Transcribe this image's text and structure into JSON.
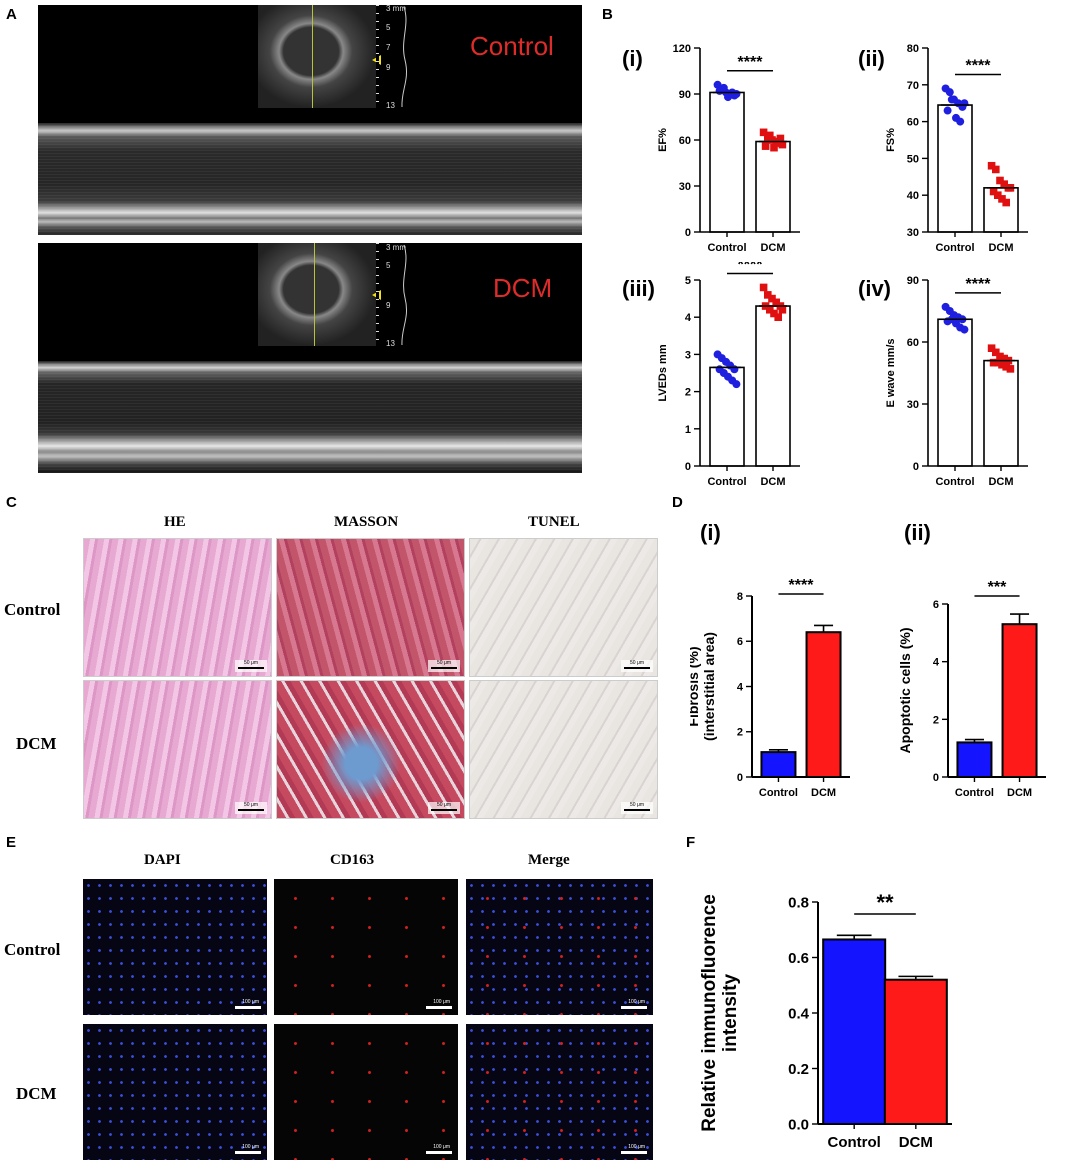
{
  "panels": {
    "A": "A",
    "B": "B",
    "C": "C",
    "D": "D",
    "E": "E",
    "F": "F"
  },
  "panelA": {
    "top_label": "Control",
    "bottom_label": "DCM",
    "depth_scale": [
      "3 mm",
      "5",
      "7",
      "9",
      "13"
    ],
    "depth_scale_bottom": [
      "3 mm",
      "5",
      "9",
      "13"
    ],
    "label_color": "#e02b2b"
  },
  "panelC": {
    "columns": [
      "HE",
      "MASSON",
      "TUNEL"
    ],
    "rows": [
      "Control",
      "DCM"
    ],
    "scale_bar": "50 μm"
  },
  "panelE": {
    "columns": [
      "DAPI",
      "CD163",
      "Merge"
    ],
    "rows": [
      "Control",
      "DCM"
    ],
    "scale_bar": "100 μm"
  },
  "colors": {
    "control_dot": "#1f1fe0",
    "dcm_dot": "#e01010",
    "control_bar": "#1414ff",
    "dcm_bar": "#ff1a1a"
  },
  "chart_data": [
    {
      "id": "B-i",
      "panel_sub": "(i)",
      "type": "scatter",
      "categories": [
        "Control",
        "DCM"
      ],
      "ylabel": "EF%",
      "ylim": [
        0,
        120
      ],
      "yticks": [
        0,
        30,
        60,
        90,
        120
      ],
      "significance": "****",
      "bar_means": [
        91,
        59
      ],
      "points": [
        [
          96,
          93,
          91,
          90,
          89,
          92,
          94,
          88,
          91,
          90
        ],
        [
          65,
          62,
          60,
          58,
          61,
          56,
          63,
          55,
          59,
          57
        ]
      ]
    },
    {
      "id": "B-ii",
      "panel_sub": "(ii)",
      "type": "scatter",
      "categories": [
        "Control",
        "DCM"
      ],
      "ylabel": "FS%",
      "ylim": [
        30,
        80
      ],
      "yticks": [
        30,
        40,
        50,
        60,
        70,
        80
      ],
      "significance": "****",
      "bar_means": [
        64.5,
        42
      ],
      "points": [
        [
          69,
          68,
          66,
          65,
          64,
          63,
          66,
          61,
          60,
          65
        ],
        [
          48,
          47,
          44,
          43,
          42,
          41,
          40,
          39,
          38,
          42
        ]
      ]
    },
    {
      "id": "B-iii",
      "panel_sub": "(iii)",
      "type": "scatter",
      "categories": [
        "Control",
        "DCM"
      ],
      "ylabel": "LVEDs mm",
      "ylim": [
        0,
        5
      ],
      "yticks": [
        0,
        1,
        2,
        3,
        4,
        5
      ],
      "significance": "****",
      "bar_means": [
        2.65,
        4.3
      ],
      "points": [
        [
          3.0,
          2.9,
          2.8,
          2.7,
          2.6,
          2.6,
          2.5,
          2.4,
          2.3,
          2.2
        ],
        [
          4.8,
          4.6,
          4.5,
          4.4,
          4.3,
          4.3,
          4.2,
          4.1,
          4.0,
          4.2
        ]
      ]
    },
    {
      "id": "B-iv",
      "panel_sub": "(iv)",
      "type": "scatter",
      "categories": [
        "Control",
        "DCM"
      ],
      "ylabel": "E wave mm/s",
      "ylim": [
        0,
        90
      ],
      "yticks": [
        0,
        30,
        60,
        90
      ],
      "significance": "****",
      "bar_means": [
        71,
        51
      ],
      "points": [
        [
          77,
          75,
          73,
          72,
          71,
          70,
          71,
          69,
          67,
          66
        ],
        [
          57,
          55,
          53,
          52,
          51,
          50,
          50,
          49,
          48,
          47
        ]
      ]
    },
    {
      "id": "D-i",
      "panel_sub": "(i)",
      "type": "bar",
      "categories": [
        "Control",
        "DCM"
      ],
      "ylabel": "Fibrosis (%)\n(interstitial area)",
      "ylabel_lines": [
        "Fibrosis (%)",
        "(interstitial area)"
      ],
      "ylim": [
        0,
        8
      ],
      "yticks": [
        0,
        2,
        4,
        6,
        8
      ],
      "significance": "****",
      "values": [
        1.1,
        6.4
      ],
      "errors": [
        0.1,
        0.3
      ]
    },
    {
      "id": "D-ii",
      "panel_sub": "(ii)",
      "type": "bar",
      "categories": [
        "Control",
        "DCM"
      ],
      "ylabel": "Apoptotic cells (%)",
      "ylabel_lines": [
        "Apoptotic cells (%)"
      ],
      "ylim": [
        0,
        6
      ],
      "yticks": [
        0,
        2,
        4,
        6
      ],
      "significance": "***",
      "values": [
        1.2,
        5.3
      ],
      "errors": [
        0.1,
        0.35
      ]
    },
    {
      "id": "F",
      "panel_sub": "",
      "type": "bar",
      "categories": [
        "Control",
        "DCM"
      ],
      "ylabel": "Relative immunofluorence\nintensity",
      "ylabel_lines": [
        "Relative immunofluorence",
        "intensity"
      ],
      "ylim": [
        0,
        0.8
      ],
      "yticks": [
        0.0,
        0.2,
        0.4,
        0.6,
        0.8
      ],
      "significance": "**",
      "values": [
        0.665,
        0.52
      ],
      "errors": [
        0.015,
        0.012
      ]
    }
  ]
}
